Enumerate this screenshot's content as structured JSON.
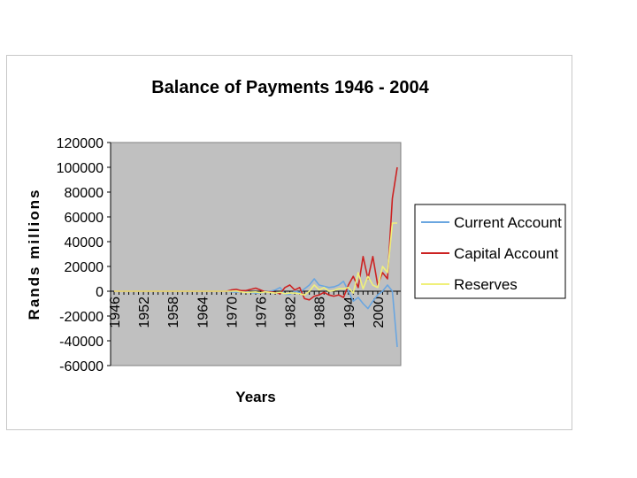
{
  "chart_data": {
    "type": "line",
    "title": "Balance of Payments 1946 - 2004",
    "xlabel": "Years",
    "ylabel": "Rands millions",
    "ylim": [
      -60000,
      120000
    ],
    "yticks": [
      120000,
      100000,
      80000,
      60000,
      40000,
      20000,
      0,
      -20000,
      -40000,
      -60000
    ],
    "xlim": [
      1946,
      2004
    ],
    "xticks": [
      1946,
      1952,
      1958,
      1964,
      1970,
      1976,
      1982,
      1988,
      1994,
      2000
    ],
    "grid": false,
    "plot_background": "#c0c0c0",
    "legend_position": "right",
    "x": [
      1946,
      1947,
      1948,
      1949,
      1950,
      1951,
      1952,
      1953,
      1954,
      1955,
      1956,
      1957,
      1958,
      1959,
      1960,
      1961,
      1962,
      1963,
      1964,
      1965,
      1966,
      1967,
      1968,
      1969,
      1970,
      1971,
      1972,
      1973,
      1974,
      1975,
      1976,
      1977,
      1978,
      1979,
      1980,
      1981,
      1982,
      1983,
      1984,
      1985,
      1986,
      1987,
      1988,
      1989,
      1990,
      1991,
      1992,
      1993,
      1994,
      1995,
      1996,
      1997,
      1998,
      1999,
      2000,
      2001,
      2002,
      2003,
      2004
    ],
    "series": [
      {
        "name": "Current Account",
        "color": "#6aa6e0",
        "values": [
          0,
          0,
          0,
          0,
          0,
          0,
          0,
          0,
          0,
          0,
          0,
          0,
          0,
          0,
          0,
          0,
          0,
          0,
          0,
          0,
          0,
          0,
          0,
          0,
          -500,
          -800,
          -300,
          0,
          -1000,
          -1500,
          -1500,
          -500,
          0,
          1000,
          3000,
          -2500,
          -2500,
          0,
          -1000,
          2000,
          5000,
          10000,
          5000,
          4000,
          3000,
          3500,
          5000,
          8000,
          0,
          -8000,
          -5000,
          -10000,
          -14000,
          -8000,
          -3000,
          0,
          5000,
          0,
          -45000
        ]
      },
      {
        "name": "Capital Account",
        "color": "#cc2222",
        "values": [
          0,
          0,
          0,
          0,
          0,
          0,
          0,
          0,
          0,
          0,
          0,
          0,
          0,
          0,
          0,
          0,
          0,
          0,
          0,
          0,
          0,
          0,
          0,
          0,
          1000,
          1500,
          500,
          500,
          1500,
          2500,
          1000,
          -500,
          -500,
          -1000,
          -2000,
          3000,
          5000,
          1000,
          3000,
          -6000,
          -7000,
          -4000,
          -3000,
          -1000,
          -3000,
          -4000,
          -3000,
          -5000,
          5000,
          12000,
          3000,
          28000,
          10000,
          28000,
          5000,
          15000,
          10000,
          75000,
          100000
        ]
      },
      {
        "name": "Reserves",
        "color": "#f0f07a",
        "values": [
          0,
          0,
          0,
          0,
          0,
          0,
          0,
          0,
          0,
          0,
          0,
          0,
          0,
          0,
          0,
          0,
          0,
          0,
          0,
          0,
          0,
          0,
          0,
          0,
          0,
          200,
          -500,
          -1000,
          -800,
          -600,
          -1200,
          -500,
          -1000,
          -1500,
          -800,
          -2000,
          -1500,
          -1500,
          -2000,
          -3000,
          0,
          5000,
          1000,
          3000,
          0,
          500,
          2000,
          2000,
          3000,
          -1500,
          15000,
          2000,
          12000,
          5000,
          3000,
          20000,
          15000,
          55000,
          55000
        ]
      }
    ]
  }
}
